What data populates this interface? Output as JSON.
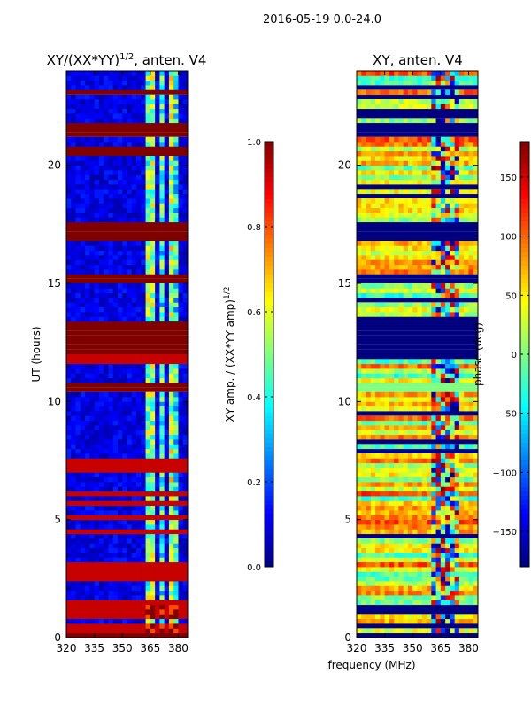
{
  "chart_data": {
    "suptitle": "2016-05-19 0.0-24.0",
    "shared_xlabel": "frequency (MHz)",
    "panels": [
      {
        "id": "amp",
        "type": "heatmap",
        "title": "XY/(XX*YY)",
        "title_sup": "1/2",
        "title_suffix": ", anten. V4",
        "ylabel": "UT (hours)",
        "xlim": [
          320,
          385
        ],
        "ylim": [
          0,
          24
        ],
        "xticks": [
          320,
          335,
          350,
          365,
          380
        ],
        "yticks": [
          0,
          5,
          10,
          15,
          20
        ],
        "colorbar": {
          "label": "XY amp. / (XX*YY amp)",
          "label_sup": "1/2",
          "range": [
            0.0,
            1.0
          ],
          "ticks": [
            "0.0",
            "0.2",
            "0.4",
            "0.6",
            "0.8",
            "1.0"
          ],
          "tick_values": [
            0.0,
            0.2,
            0.4,
            0.6,
            0.8,
            1.0
          ],
          "colormap": "jet"
        },
        "bands": [
          {
            "y0": 0.0,
            "y1": 0.25,
            "value": 1.0
          },
          {
            "y0": 10.35,
            "y1": 10.75,
            "value": 1.0
          },
          {
            "y0": 12.0,
            "y1": 13.5,
            "value": 1.0
          },
          {
            "y0": 15.05,
            "y1": 15.5,
            "value": 1.0
          },
          {
            "y0": 16.9,
            "y1": 17.6,
            "value": 1.0
          },
          {
            "y0": 20.5,
            "y1": 20.8,
            "value": 1.0
          },
          {
            "y0": 21.3,
            "y1": 21.8,
            "value": 1.0
          },
          {
            "y0": 23.0,
            "y1": 23.3,
            "value": 1.0
          }
        ],
        "background_value": 0.1,
        "hot_columns": [
          {
            "f0": 363,
            "f1": 368,
            "value": 0.5
          },
          {
            "f0": 369.5,
            "f1": 373,
            "value": 0.42
          },
          {
            "f0": 374.5,
            "f1": 376.5,
            "value": 0.55
          },
          {
            "f0": 378,
            "f1": 379.5,
            "value": 0.4
          }
        ]
      },
      {
        "id": "phase",
        "type": "heatmap",
        "title": "XY, anten. V4",
        "ylabel": "",
        "xlim": [
          320,
          385
        ],
        "ylim": [
          0,
          24
        ],
        "xticks": [
          320,
          335,
          350,
          365,
          380
        ],
        "yticks": [
          0,
          5,
          10,
          15,
          20
        ],
        "colorbar": {
          "label": "phase (deg)",
          "range": [
            -180,
            180
          ],
          "ticks": [
            "150",
            "100",
            "50",
            "0",
            "−50",
            "−100",
            "−150"
          ],
          "tick_values": [
            150,
            100,
            50,
            0,
            -50,
            -100,
            -150
          ],
          "colormap": "jet"
        },
        "bands": [
          {
            "y0": 0.0,
            "y1": 0.25,
            "value": -180
          },
          {
            "y0": 10.35,
            "y1": 10.75,
            "value": 0
          },
          {
            "y0": 12.0,
            "y1": 13.5,
            "value": -180
          },
          {
            "y0": 15.05,
            "y1": 15.5,
            "value": -180
          },
          {
            "y0": 16.9,
            "y1": 17.6,
            "value": -180
          },
          {
            "y0": 21.3,
            "y1": 21.8,
            "value": -180
          }
        ]
      }
    ]
  }
}
